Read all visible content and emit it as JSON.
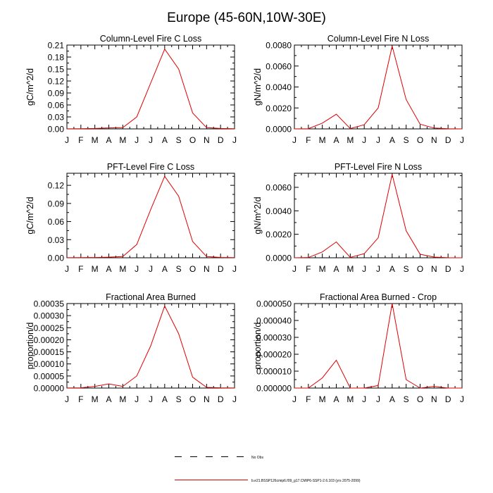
{
  "title": "Europe (45-60N,10W-30E)",
  "legend": {
    "obs_label": "No Obs",
    "model_label": "b.e21.BSSP126cmip6.f09_g17.CMIP6-SSP1-2.6.103 (yrs 2075-2099)",
    "model_color": "#e00000"
  },
  "chart_data": [
    {
      "type": "line",
      "title": "Column-Level Fire C Loss",
      "ylabel": "gC/m^2/d",
      "categories": [
        "J",
        "F",
        "M",
        "A",
        "M",
        "J",
        "J",
        "A",
        "S",
        "O",
        "N",
        "D",
        "J"
      ],
      "ylim": [
        0,
        0.21
      ],
      "yticks": [
        "0.00",
        "0.03",
        "0.06",
        "0.09",
        "0.12",
        "0.15",
        "0.18",
        "0.21"
      ],
      "series": [
        {
          "values": [
            0.0003,
            0.0005,
            0.001,
            0.0025,
            0.003,
            0.03,
            0.115,
            0.2,
            0.15,
            0.04,
            0.003,
            0.001,
            0.0005
          ]
        }
      ]
    },
    {
      "type": "line",
      "title": "Column-Level Fire N Loss",
      "ylabel": "gN/m^2/d",
      "categories": [
        "J",
        "F",
        "M",
        "A",
        "M",
        "J",
        "J",
        "A",
        "S",
        "O",
        "N",
        "D",
        "J"
      ],
      "ylim": [
        0,
        0.008
      ],
      "yticks": [
        "0.0000",
        "0.0020",
        "0.0040",
        "0.0060",
        "0.0080"
      ],
      "series": [
        {
          "values": [
            0.0,
            2e-05,
            0.00055,
            0.0014,
            3e-05,
            0.0004,
            0.002,
            0.0079,
            0.0028,
            0.00045,
            8e-05,
            2e-05,
            0.0
          ]
        }
      ]
    },
    {
      "type": "line",
      "title": "PFT-Level Fire C Loss",
      "ylabel": "gC/m^2/d",
      "categories": [
        "J",
        "F",
        "M",
        "A",
        "M",
        "J",
        "J",
        "A",
        "S",
        "O",
        "N",
        "D",
        "J"
      ],
      "ylim": [
        0,
        0.14
      ],
      "yticks": [
        "0.00",
        "0.03",
        "0.06",
        "0.09",
        "0.12"
      ],
      "series": [
        {
          "values": [
            0.0002,
            0.0003,
            0.0005,
            0.001,
            0.002,
            0.022,
            0.08,
            0.135,
            0.102,
            0.027,
            0.002,
            0.0006,
            0.0003
          ]
        }
      ]
    },
    {
      "type": "line",
      "title": "PFT-Level Fire N Loss",
      "ylabel": "gN/m^2/d",
      "categories": [
        "J",
        "F",
        "M",
        "A",
        "M",
        "J",
        "J",
        "A",
        "S",
        "O",
        "N",
        "D",
        "J"
      ],
      "ylim": [
        0,
        0.0072
      ],
      "yticks": [
        "0.0000",
        "0.0020",
        "0.0040",
        "0.0060"
      ],
      "series": [
        {
          "values": [
            0.0,
            2e-05,
            0.0005,
            0.00135,
            3e-05,
            0.00035,
            0.0017,
            0.0071,
            0.0023,
            0.0003,
            6e-05,
            1e-05,
            0.0
          ]
        }
      ]
    },
    {
      "type": "line",
      "title": "Fractional Area Burned",
      "ylabel": "proportion/d",
      "categories": [
        "J",
        "F",
        "M",
        "A",
        "M",
        "J",
        "J",
        "A",
        "S",
        "O",
        "N",
        "D",
        "J"
      ],
      "ylim": [
        0,
        0.00035
      ],
      "yticks": [
        "0.00000",
        "0.00005",
        "0.00010",
        "0.00015",
        "0.00020",
        "0.00025",
        "0.00030",
        "0.00035"
      ],
      "series": [
        {
          "values": [
            5e-07,
            1e-06,
            7e-06,
            1.7e-05,
            7e-06,
            5e-05,
            0.000175,
            0.00034,
            0.000225,
            4.5e-05,
            3e-06,
            1e-06,
            5e-07
          ]
        }
      ]
    },
    {
      "type": "line",
      "title": "Fractional Area Burned - Crop",
      "ylabel": "proportion/d",
      "categories": [
        "J",
        "F",
        "M",
        "A",
        "M",
        "J",
        "J",
        "A",
        "S",
        "O",
        "N",
        "D",
        "J"
      ],
      "ylim": [
        0,
        5e-05
      ],
      "yticks": [
        "0.000000",
        "0.000010",
        "0.000020",
        "0.000030",
        "0.000040",
        "0.000050"
      ],
      "series": [
        {
          "values": [
            0.0,
            0.0,
            6e-06,
            1.65e-05,
            0.0,
            0.0,
            1.5e-06,
            5e-05,
            5e-06,
            0.0,
            1e-06,
            0.0,
            0.0
          ]
        }
      ]
    }
  ]
}
